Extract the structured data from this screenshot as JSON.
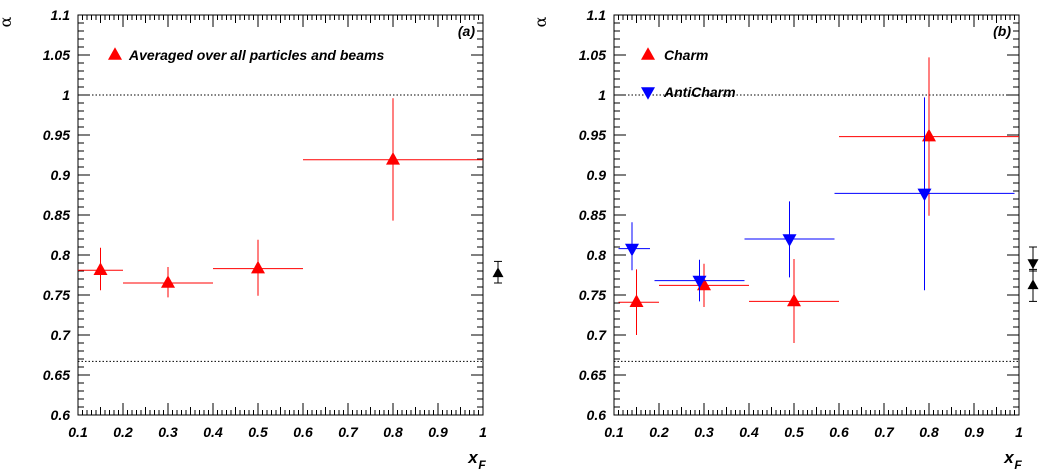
{
  "chart_data": [
    {
      "type": "scatter",
      "panel_label": "(a)",
      "ylabel": "α",
      "xlabel": "x",
      "xlabel_sub": "F",
      "xlim": [
        0.1,
        1.0
      ],
      "ylim": [
        0.6,
        1.1
      ],
      "x_ticks": [
        "0.1",
        "0.2",
        "0.3",
        "0.4",
        "0.5",
        "0.6",
        "0.7",
        "0.8",
        "0.9",
        "1"
      ],
      "y_ticks": [
        "0.6",
        "0.65",
        "0.7",
        "0.75",
        "0.8",
        "0.85",
        "0.9",
        "0.95",
        "1",
        "1.05",
        "1.1"
      ],
      "reference_lines": [
        1.0,
        0.667
      ],
      "series": [
        {
          "name": "Averaged over all particles and beams",
          "color": "#ff0000",
          "marker": "triangle-up",
          "points": [
            {
              "x": 0.15,
              "y": 0.781,
              "x_low": 0.1,
              "x_high": 0.2,
              "y_low": 0.756,
              "y_high": 0.809
            },
            {
              "x": 0.3,
              "y": 0.765,
              "x_low": 0.2,
              "x_high": 0.4,
              "y_low": 0.747,
              "y_high": 0.785
            },
            {
              "x": 0.5,
              "y": 0.783,
              "x_low": 0.4,
              "x_high": 0.6,
              "y_low": 0.749,
              "y_high": 0.819
            },
            {
              "x": 0.8,
              "y": 0.919,
              "x_low": 0.6,
              "x_high": 1.0,
              "y_low": 0.843,
              "y_high": 0.996
            }
          ]
        }
      ],
      "side_markers": [
        {
          "marker": "triangle-up",
          "color": "#000000",
          "y": 0.777,
          "y_low": 0.765,
          "y_high": 0.792
        }
      ]
    },
    {
      "type": "scatter",
      "panel_label": "(b)",
      "ylabel": "α",
      "xlabel": "x",
      "xlabel_sub": "F",
      "xlim": [
        0.1,
        1.0
      ],
      "ylim": [
        0.6,
        1.1
      ],
      "x_ticks": [
        "0.1",
        "0.2",
        "0.3",
        "0.4",
        "0.5",
        "0.6",
        "0.7",
        "0.8",
        "0.9",
        "1"
      ],
      "y_ticks": [
        "0.6",
        "0.65",
        "0.7",
        "0.75",
        "0.8",
        "0.85",
        "0.9",
        "0.95",
        "1",
        "1.05",
        "1.1"
      ],
      "reference_lines": [
        1.0,
        0.667
      ],
      "series": [
        {
          "name": "Charm",
          "color": "#ff0000",
          "marker": "triangle-up",
          "points": [
            {
              "x": 0.15,
              "y": 0.741,
              "x_low": 0.11,
              "x_high": 0.2,
              "y_low": 0.7,
              "y_high": 0.782
            },
            {
              "x": 0.3,
              "y": 0.762,
              "x_low": 0.2,
              "x_high": 0.4,
              "y_low": 0.735,
              "y_high": 0.789
            },
            {
              "x": 0.5,
              "y": 0.742,
              "x_low": 0.4,
              "x_high": 0.6,
              "y_low": 0.69,
              "y_high": 0.795
            },
            {
              "x": 0.8,
              "y": 0.948,
              "x_low": 0.6,
              "x_high": 1.0,
              "y_low": 0.849,
              "y_high": 1.047
            }
          ]
        },
        {
          "name": "AntiCharm",
          "color": "#0000ff",
          "marker": "triangle-down",
          "points": [
            {
              "x": 0.14,
              "y": 0.808,
              "x_low": 0.11,
              "x_high": 0.18,
              "y_low": 0.781,
              "y_high": 0.841
            },
            {
              "x": 0.29,
              "y": 0.768,
              "x_low": 0.19,
              "x_high": 0.39,
              "y_low": 0.742,
              "y_high": 0.794
            },
            {
              "x": 0.49,
              "y": 0.82,
              "x_low": 0.39,
              "x_high": 0.59,
              "y_low": 0.772,
              "y_high": 0.867
            },
            {
              "x": 0.79,
              "y": 0.877,
              "x_low": 0.59,
              "x_high": 0.99,
              "y_low": 0.756,
              "y_high": 0.997
            }
          ]
        }
      ],
      "side_markers": [
        {
          "marker": "triangle-down",
          "color": "#000000",
          "y": 0.79,
          "y_low": 0.78,
          "y_high": 0.81
        },
        {
          "marker": "triangle-up",
          "color": "#000000",
          "y": 0.762,
          "y_low": 0.742,
          "y_high": 0.782
        }
      ]
    }
  ]
}
